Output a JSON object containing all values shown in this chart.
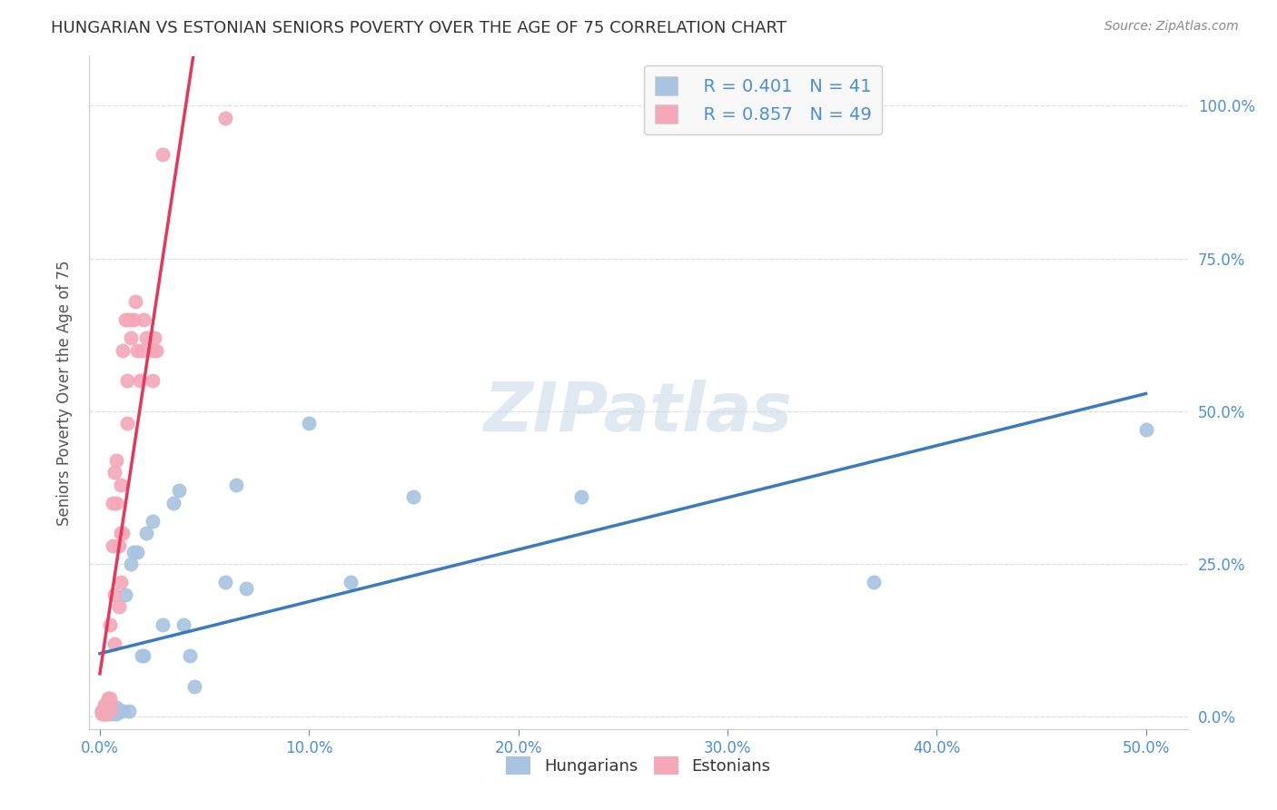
{
  "title": "HUNGARIAN VS ESTONIAN SENIORS POVERTY OVER THE AGE OF 75 CORRELATION CHART",
  "source": "Source: ZipAtlas.com",
  "ylabel": "Seniors Poverty Over the Age of 75",
  "x_tick_labels": [
    "0.0%",
    "10.0%",
    "20.0%",
    "30.0%",
    "40.0%",
    "50.0%"
  ],
  "x_tick_values": [
    0,
    10,
    20,
    30,
    40,
    50
  ],
  "y_tick_values": [
    0,
    25,
    50,
    75,
    100
  ],
  "xlim": [
    -0.5,
    52
  ],
  "ylim": [
    -2,
    108
  ],
  "hungarian_R": 0.401,
  "hungarian_N": 41,
  "estonian_R": 0.857,
  "estonian_N": 49,
  "hungarian_color": "#a8c4e0",
  "estonian_color": "#f4a8b8",
  "hungarian_line_color": "#3a7abf",
  "estonian_line_color": "#e8365a",
  "estonian_dashed_color": "#ccaabb",
  "watermark_color": "#c8d8e8",
  "hungarian_x": [
    0.1,
    0.2,
    0.3,
    0.3,
    0.4,
    0.4,
    0.5,
    0.5,
    0.5,
    0.6,
    0.6,
    0.7,
    0.8,
    0.8,
    0.9,
    1.0,
    1.1,
    1.2,
    1.4,
    1.5,
    1.6,
    1.8,
    2.0,
    2.1,
    2.2,
    2.5,
    3.0,
    3.5,
    3.8,
    4.0,
    4.3,
    4.5,
    6.0,
    6.5,
    7.0,
    10.0,
    12.0,
    15.0,
    23.0,
    37.0,
    50.0
  ],
  "hungarian_y": [
    1.0,
    0.5,
    1.5,
    1.0,
    1.0,
    0.5,
    1.0,
    1.5,
    1.0,
    1.0,
    0.5,
    1.0,
    0.5,
    1.5,
    1.0,
    1.0,
    1.0,
    20.0,
    1.0,
    25.0,
    27.0,
    27.0,
    10.0,
    10.0,
    30.0,
    32.0,
    15.0,
    35.0,
    37.0,
    15.0,
    10.0,
    5.0,
    22.0,
    38.0,
    21.0,
    48.0,
    22.0,
    36.0,
    36.0,
    22.0,
    47.0
  ],
  "estonian_x": [
    0.1,
    0.1,
    0.2,
    0.2,
    0.2,
    0.3,
    0.3,
    0.3,
    0.3,
    0.4,
    0.4,
    0.4,
    0.5,
    0.5,
    0.5,
    0.5,
    0.5,
    0.6,
    0.6,
    0.7,
    0.7,
    0.7,
    0.8,
    0.8,
    0.9,
    0.9,
    1.0,
    1.0,
    1.0,
    1.1,
    1.1,
    1.2,
    1.3,
    1.3,
    1.4,
    1.5,
    1.6,
    1.7,
    1.8,
    1.9,
    2.0,
    2.1,
    2.2,
    2.5,
    2.5,
    2.6,
    2.7,
    3.0,
    6.0
  ],
  "estonian_y": [
    1.0,
    0.5,
    1.0,
    2.0,
    0.5,
    1.0,
    1.5,
    2.0,
    0.5,
    1.0,
    2.0,
    3.0,
    1.0,
    2.0,
    1.5,
    3.0,
    15.0,
    28.0,
    35.0,
    12.0,
    20.0,
    40.0,
    35.0,
    42.0,
    18.0,
    28.0,
    30.0,
    38.0,
    22.0,
    30.0,
    60.0,
    65.0,
    55.0,
    48.0,
    65.0,
    62.0,
    65.0,
    68.0,
    60.0,
    55.0,
    60.0,
    65.0,
    62.0,
    60.0,
    55.0,
    62.0,
    60.0,
    92.0,
    98.0
  ],
  "background_color": "#ffffff",
  "grid_color": "#dde0e8",
  "title_color": "#333333",
  "axis_label_color": "#555555",
  "blue_color": "#4a90d9",
  "tick_color": "#4a90d9"
}
